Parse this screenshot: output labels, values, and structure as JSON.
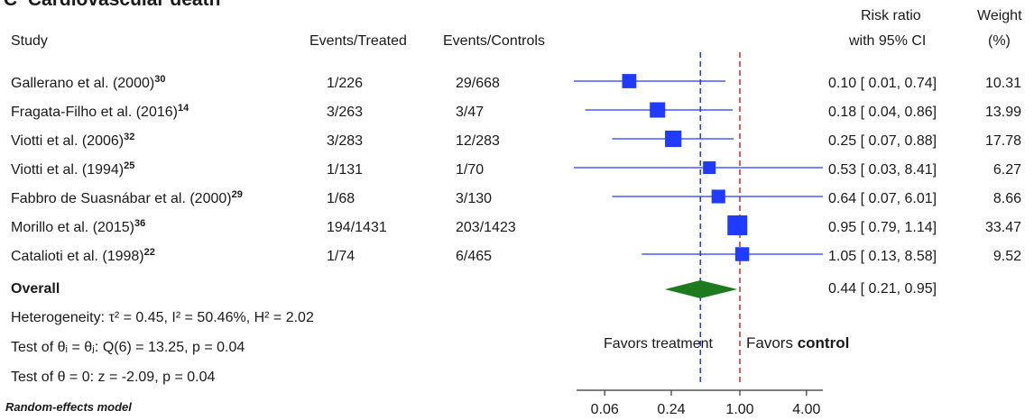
{
  "panel_label": "C",
  "panel_title": "Cardiovascular death",
  "headers": {
    "study": "Study",
    "events_treated": "Events/Treated",
    "events_controls": "Events/Controls",
    "rr_line1": "Risk ratio",
    "rr_line2": "with 95% CI",
    "weight_line1": "Weight",
    "weight_line2": "(%)"
  },
  "studies": [
    {
      "name": "Gallerano et al. (2000)",
      "ref": "30",
      "treated": "1/226",
      "controls": "29/668",
      "ci_text": "0.10 [ 0.01,  0.74]",
      "weight": "10.31"
    },
    {
      "name": "Fragata-Filho et al. (2016)",
      "ref": "14",
      "treated": "3/263",
      "controls": "3/47",
      "ci_text": "0.18 [ 0.04,  0.86]",
      "weight": "13.99"
    },
    {
      "name": "Viotti et al. (2006)",
      "ref": "32",
      "treated": "3/283",
      "controls": "12/283",
      "ci_text": "0.25 [ 0.07,  0.88]",
      "weight": "17.78"
    },
    {
      "name": "Viotti et al. (1994)",
      "ref": "25",
      "treated": "1/131",
      "controls": "1/70",
      "ci_text": "0.53 [ 0.03,  8.41]",
      "weight": "6.27"
    },
    {
      "name": "Fabbro de Suasnábar et al. (2000)",
      "ref": "29",
      "treated": "1/68",
      "controls": "3/130",
      "ci_text": "0.64 [ 0.07,  6.01]",
      "weight": "8.66"
    },
    {
      "name": "Morillo et al. (2015)",
      "ref": "36",
      "treated": "194/1431",
      "controls": "203/1423",
      "ci_text": "0.95 [ 0.79,  1.14]",
      "weight": "33.47"
    },
    {
      "name": "Catalioti et al. (1998)",
      "ref": "22",
      "treated": "1/74",
      "controls": "6/465",
      "ci_text": "1.05 [ 0.13,  8.58]",
      "weight": "9.52"
    }
  ],
  "overall": {
    "label": "Overall",
    "ci_text": "0.44 [ 0.21,  0.95]"
  },
  "stats": {
    "heterogeneity": "Heterogeneity: τ² = 0.45, I² = 50.46%, H² = 2.02",
    "test_theta_i": "Test of θᵢ = θⱼ: Q(6) = 13.25, p = 0.04",
    "test_theta_0": "Test of θ = 0: z = -2.09, p = 0.04"
  },
  "model_note": "Random-effects model",
  "favors": {
    "treatment": "Favors treatment",
    "control_prefix": "Favors ",
    "control_bold": "control"
  },
  "colors": {
    "marker": "#1f3bff",
    "overall": "#1e7a1e",
    "null_line": "#e03030",
    "pooled_line": "#2b3fd6",
    "axis": "#333333"
  },
  "chart_data": {
    "type": "forest",
    "x_scale": "log",
    "xlim": [
      0.007,
      5.5
    ],
    "x_ticks": [
      0.06,
      0.24,
      1.0,
      4.0
    ],
    "x_tick_labels": [
      "0.06",
      "0.24",
      "1.00",
      "4.00"
    ],
    "null_value": 1.0,
    "pooled_value": 0.44,
    "studies": [
      {
        "rr": 0.1,
        "lo": 0.01,
        "hi": 0.74,
        "weight": 10.31
      },
      {
        "rr": 0.18,
        "lo": 0.04,
        "hi": 0.86,
        "weight": 13.99
      },
      {
        "rr": 0.25,
        "lo": 0.07,
        "hi": 0.88,
        "weight": 17.78
      },
      {
        "rr": 0.53,
        "lo": 0.03,
        "hi": 8.41,
        "weight": 6.27
      },
      {
        "rr": 0.64,
        "lo": 0.07,
        "hi": 6.01,
        "weight": 8.66
      },
      {
        "rr": 0.95,
        "lo": 0.79,
        "hi": 1.14,
        "weight": 33.47
      },
      {
        "rr": 1.05,
        "lo": 0.13,
        "hi": 8.58,
        "weight": 9.52
      }
    ],
    "overall": {
      "rr": 0.44,
      "lo": 0.21,
      "hi": 0.95
    }
  }
}
